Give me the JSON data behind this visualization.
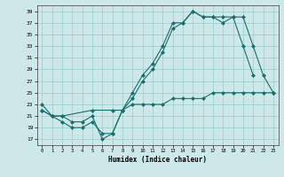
{
  "xlabel": "Humidex (Indice chaleur)",
  "bg_color": "#cce8e8",
  "grid_color": "#99cccc",
  "line_color": "#1a6e6e",
  "xlim": [
    -0.5,
    23.5
  ],
  "ylim": [
    16,
    40
  ],
  "yticks": [
    17,
    19,
    21,
    23,
    25,
    27,
    29,
    31,
    33,
    35,
    37,
    39
  ],
  "xticks": [
    0,
    1,
    2,
    3,
    4,
    5,
    6,
    7,
    8,
    9,
    10,
    11,
    12,
    13,
    14,
    15,
    16,
    17,
    18,
    19,
    20,
    21,
    22,
    23
  ],
  "line1_x": [
    0,
    1,
    2,
    3,
    4,
    5,
    6,
    7,
    8,
    9,
    10,
    11,
    12,
    13,
    14,
    15,
    16,
    17,
    18,
    19,
    20,
    21
  ],
  "line1_y": [
    23,
    21,
    21,
    20,
    20,
    21,
    17,
    18,
    22,
    25,
    28,
    30,
    33,
    37,
    37,
    39,
    38,
    38,
    38,
    38,
    33,
    28
  ],
  "line2_x": [
    0,
    1,
    2,
    3,
    4,
    5,
    6,
    7,
    8,
    9,
    10,
    11,
    12,
    13,
    14,
    15,
    16,
    17,
    18,
    19,
    20,
    21,
    22,
    23
  ],
  "line2_y": [
    22,
    21,
    20,
    19,
    19,
    20,
    18,
    18,
    22,
    24,
    27,
    29,
    32,
    36,
    37,
    39,
    38,
    38,
    37,
    38,
    38,
    33,
    28,
    25
  ],
  "line3_x": [
    0,
    1,
    2,
    5,
    7,
    8,
    9,
    10,
    11,
    12,
    13,
    14,
    15,
    16,
    17,
    18,
    19,
    20,
    21,
    22,
    23
  ],
  "line3_y": [
    22,
    21,
    21,
    22,
    22,
    22,
    23,
    23,
    23,
    23,
    24,
    24,
    24,
    24,
    25,
    25,
    25,
    25,
    25,
    25,
    25
  ]
}
